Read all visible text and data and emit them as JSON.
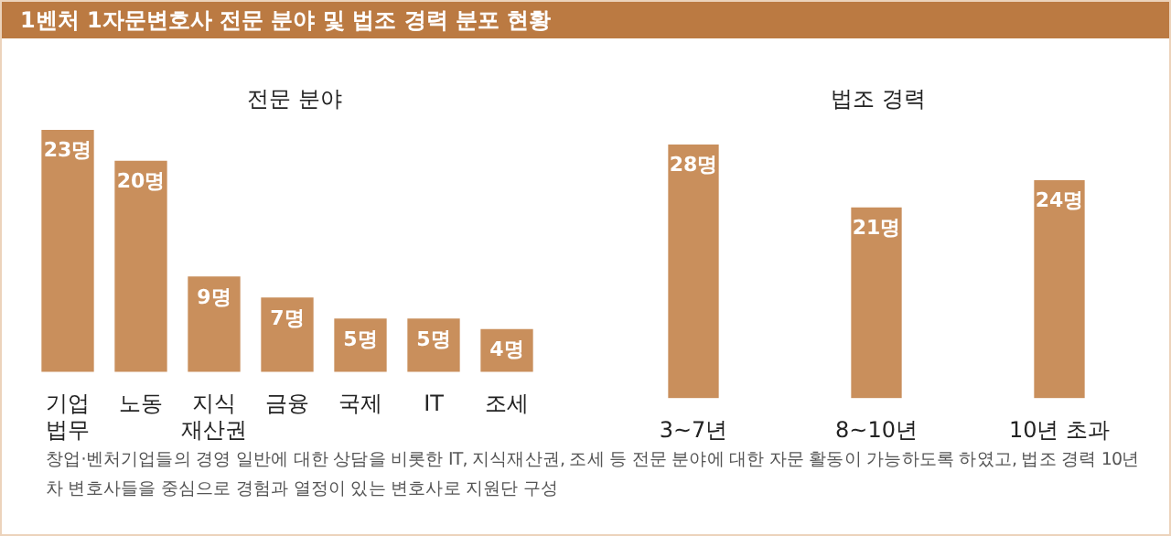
{
  "chart_data": [
    {
      "type": "other",
      "title": "1벤처 1자문변호사 전문 분야 및 법조 경력 분포 현황"
    },
    {
      "type": "bar",
      "title": "전문 분야",
      "categories": [
        "기업\n법무",
        "노동",
        "지식\n재산권",
        "금융",
        "국제",
        "IT",
        "조세"
      ],
      "values": [
        23,
        20,
        9,
        7,
        5,
        5,
        4
      ],
      "value_labels": [
        "23명",
        "20명",
        "9명",
        "7명",
        "5명",
        "5명",
        "4명"
      ],
      "color": "#c98f5c",
      "tick_labels": "x"
    },
    {
      "type": "bar",
      "title": "법조 경력",
      "categories": [
        "3~7년",
        "8~10년",
        "10년 초과"
      ],
      "values": [
        28,
        21,
        24
      ],
      "value_labels": [
        "28명",
        "21명",
        "24명"
      ],
      "color": "#c98f5c",
      "tick_labels": "x"
    },
    {
      "type": "other",
      "annotations": [
        "창업·벤처기업들의 경영 일반에 대한 상담을 비롯한 IT, 지식재산권, 조세 등 전문 분야에 대한 자문 활동이 가능하도록 하였고, 법조 경력 10년 차 변호사들을 중심으로 경험과 열정이 있는 변호사로 지원단 구성"
      ]
    }
  ]
}
